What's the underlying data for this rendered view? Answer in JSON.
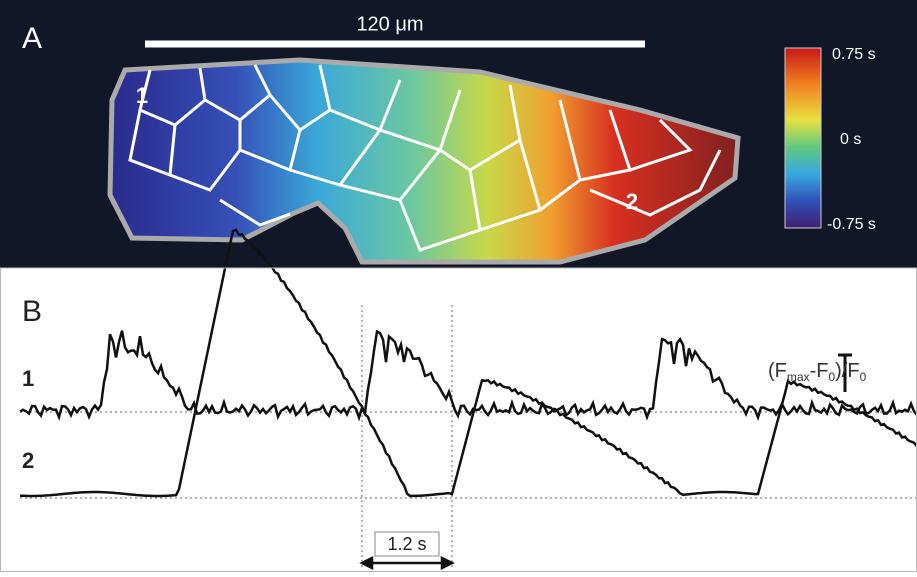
{
  "panel_a": {
    "label": "A",
    "scale_bar": "120 μm",
    "regions": [
      "1",
      "2"
    ],
    "colorbar": {
      "ticks": [
        "0.75 s",
        "0 s",
        "-0.75 s"
      ]
    }
  },
  "panel_b": {
    "label": "B",
    "traces": [
      "1",
      "2"
    ],
    "amplitude_label": [
      "(F",
      "max",
      "-F",
      "0",
      ")/F",
      "0"
    ],
    "time_bar": "1.2 s"
  }
}
